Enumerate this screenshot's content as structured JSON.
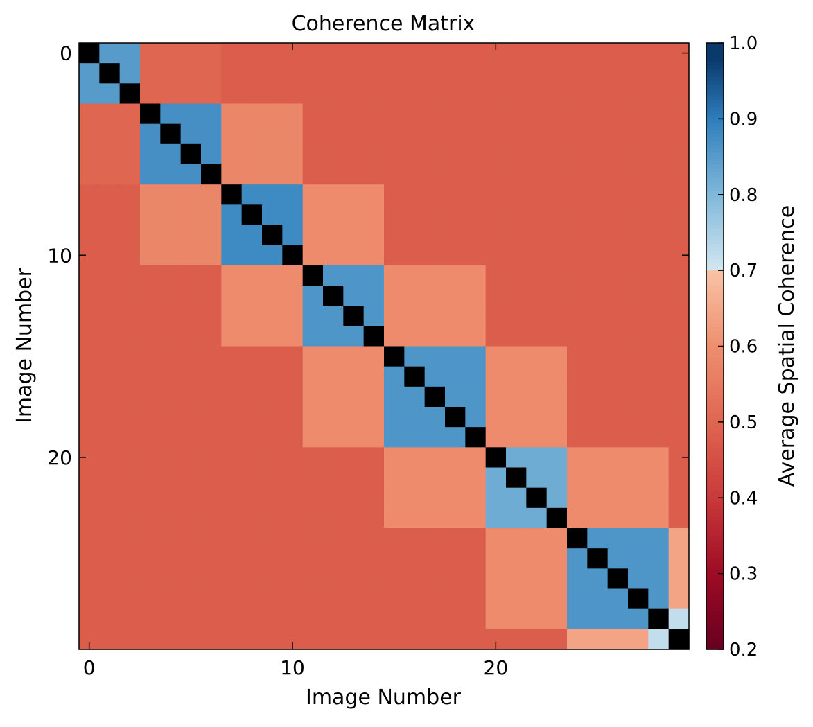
{
  "chart_data": {
    "type": "heatmap",
    "title": "Coherence Matrix",
    "xlabel": "Image Number",
    "ylabel": "Image Number",
    "n": 30,
    "x_ticks": [
      0,
      10,
      20
    ],
    "y_ticks": [
      0,
      10,
      20
    ],
    "diagonal_value": 1.0,
    "background_value": 0.48,
    "blocks": [
      {
        "indices": [
          0,
          1,
          2
        ],
        "within": 0.85,
        "to_next_block": 0.5
      },
      {
        "indices": [
          3,
          4,
          5,
          6
        ],
        "within": 0.87,
        "to_next_block": 0.58
      },
      {
        "indices": [
          7,
          8,
          9,
          10
        ],
        "within": 0.88,
        "to_next_block": 0.59
      },
      {
        "indices": [
          11,
          12,
          13,
          14
        ],
        "within": 0.86,
        "to_next_block": 0.59
      },
      {
        "indices": [
          15,
          16,
          17,
          18,
          19
        ],
        "within": 0.86,
        "to_next_block": 0.59
      },
      {
        "indices": [
          20,
          21,
          22,
          23
        ],
        "within": 0.82,
        "to_next_block": 0.59
      },
      {
        "indices": [
          24,
          25,
          26,
          27,
          28
        ],
        "within": 0.86,
        "to_next_block": 0.64
      },
      {
        "indices": [
          29
        ],
        "within": 1.0,
        "to_next_block": null
      }
    ],
    "special_pairs": [
      {
        "i": 28,
        "j": 29,
        "value": 0.72
      }
    ],
    "colorbar": {
      "label": "Average Spatial Coherence",
      "vmin": 0.2,
      "vmax": 1.0,
      "ticks": [
        "1.0",
        "0.9",
        "0.8",
        "0.7",
        "0.6",
        "0.5",
        "0.4",
        "0.3",
        "0.2"
      ],
      "colormap": "RdBu",
      "color_stops": [
        {
          "v": 0.2,
          "c": "#67001f"
        },
        {
          "v": 0.3,
          "c": "#9e0b25"
        },
        {
          "v": 0.4,
          "c": "#c93a3a"
        },
        {
          "v": 0.5,
          "c": "#df6651"
        },
        {
          "v": 0.6,
          "c": "#ee8f6f"
        },
        {
          "v": 0.7,
          "c": "#f8c3a5"
        },
        {
          "v": 0.7001,
          "c": "#d3e6f0"
        },
        {
          "v": 0.8,
          "c": "#7fb8da"
        },
        {
          "v": 0.9,
          "c": "#2e7ebc"
        },
        {
          "v": 0.99,
          "c": "#053061"
        },
        {
          "v": 1.0,
          "c": "#000000"
        }
      ]
    }
  }
}
